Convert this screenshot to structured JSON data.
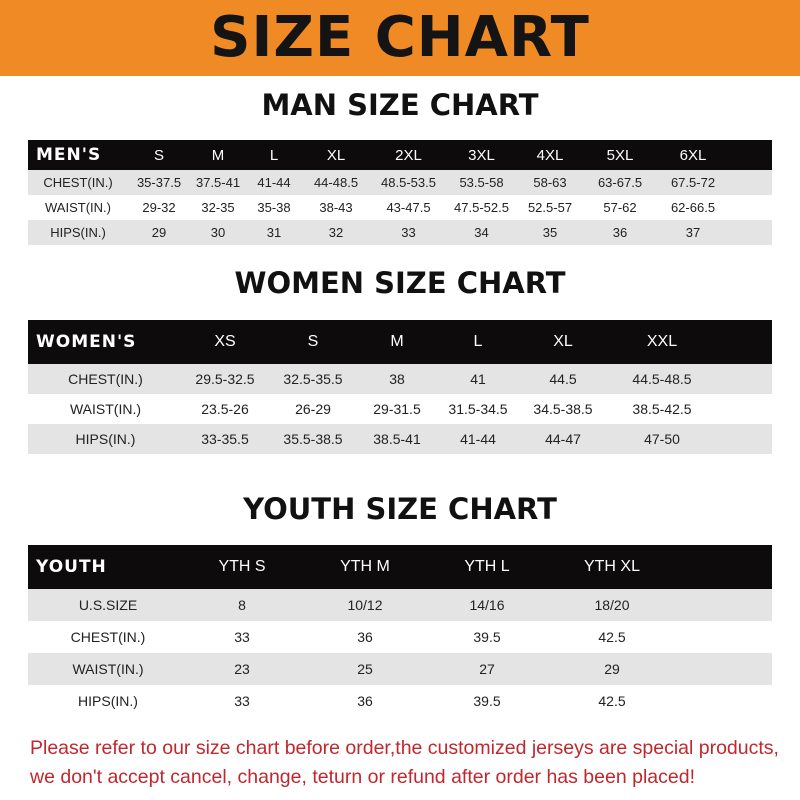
{
  "title": "SIZE CHART",
  "men": {
    "title": "MAN SIZE CHART",
    "header": [
      "MEN'S",
      "S",
      "M",
      "L",
      "XL",
      "2XL",
      "3XL",
      "4XL",
      "5XL",
      "6XL"
    ],
    "rows": [
      [
        "CHEST(IN.)",
        "35-37.5",
        "37.5-41",
        "41-44",
        "44-48.5",
        "48.5-53.5",
        "53.5-58",
        "58-63",
        "63-67.5",
        "67.5-72"
      ],
      [
        "WAIST(IN.)",
        "29-32",
        "32-35",
        "35-38",
        "38-43",
        "43-47.5",
        "47.5-52.5",
        "52.5-57",
        "57-62",
        "62-66.5"
      ],
      [
        "HIPS(IN.)",
        "29",
        "30",
        "31",
        "32",
        "33",
        "34",
        "35",
        "36",
        "37"
      ]
    ]
  },
  "women": {
    "title": "WOMEN SIZE CHART",
    "header": [
      "WOMEN'S",
      "XS",
      "S",
      "M",
      "L",
      "XL",
      "XXL"
    ],
    "rows": [
      [
        "CHEST(IN.)",
        "29.5-32.5",
        "32.5-35.5",
        "38",
        "41",
        "44.5",
        "44.5-48.5"
      ],
      [
        "WAIST(IN.)",
        "23.5-26",
        "26-29",
        "29-31.5",
        "31.5-34.5",
        "34.5-38.5",
        "38.5-42.5"
      ],
      [
        "HIPS(IN.)",
        "33-35.5",
        "35.5-38.5",
        "38.5-41",
        "41-44",
        "44-47",
        "47-50"
      ]
    ]
  },
  "youth": {
    "title": "YOUTH SIZE CHART",
    "header": [
      "YOUTH",
      "YTH S",
      "YTH M",
      "YTH L",
      "YTH XL"
    ],
    "rows": [
      [
        "U.S.SIZE",
        "8",
        "10/12",
        "14/16",
        "18/20"
      ],
      [
        "CHEST(IN.)",
        "33",
        "36",
        "39.5",
        "42.5"
      ],
      [
        "WAIST(IN.)",
        "23",
        "25",
        "27",
        "29"
      ],
      [
        "HIPS(IN.)",
        "33",
        "36",
        "39.5",
        "42.5"
      ]
    ]
  },
  "note": {
    "line1": "Please refer to our size chart before order,the customized jerseys are special products,",
    "line2": "we don't accept cancel, change, teturn or refund after order has been placed!"
  },
  "colors": {
    "banner": "#f08a24",
    "header_row": "#0d0b0b",
    "note_text": "#c0282d"
  }
}
